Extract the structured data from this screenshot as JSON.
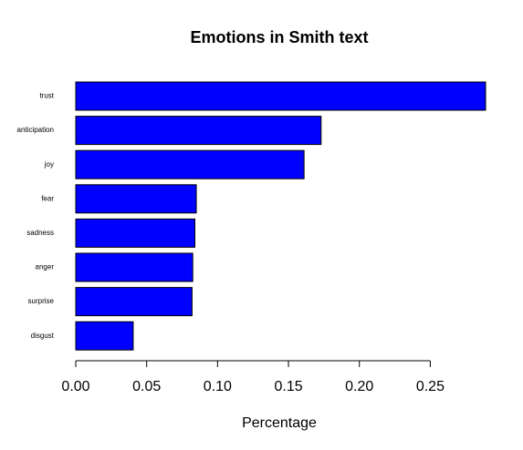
{
  "chart_data": {
    "type": "barh",
    "title": "Emotions in Smith text",
    "xlabel": "Percentage",
    "categories": [
      "trust",
      "anticipation",
      "joy",
      "fear",
      "sadness",
      "anger",
      "surprise",
      "disgust"
    ],
    "values": [
      0.289,
      0.173,
      0.161,
      0.085,
      0.084,
      0.0825,
      0.082,
      0.0405
    ],
    "color": "#0000ff",
    "xlim": [
      0,
      0.289
    ],
    "xticks": [
      {
        "value": 0,
        "label": "0.00"
      },
      {
        "value": 0.05,
        "label": "0.05"
      },
      {
        "value": 0.1,
        "label": "0.10"
      },
      {
        "value": 0.15,
        "label": "0.15"
      },
      {
        "value": 0.2,
        "label": "0.20"
      },
      {
        "value": 0.25,
        "label": "0.25"
      }
    ],
    "grid": false
  }
}
